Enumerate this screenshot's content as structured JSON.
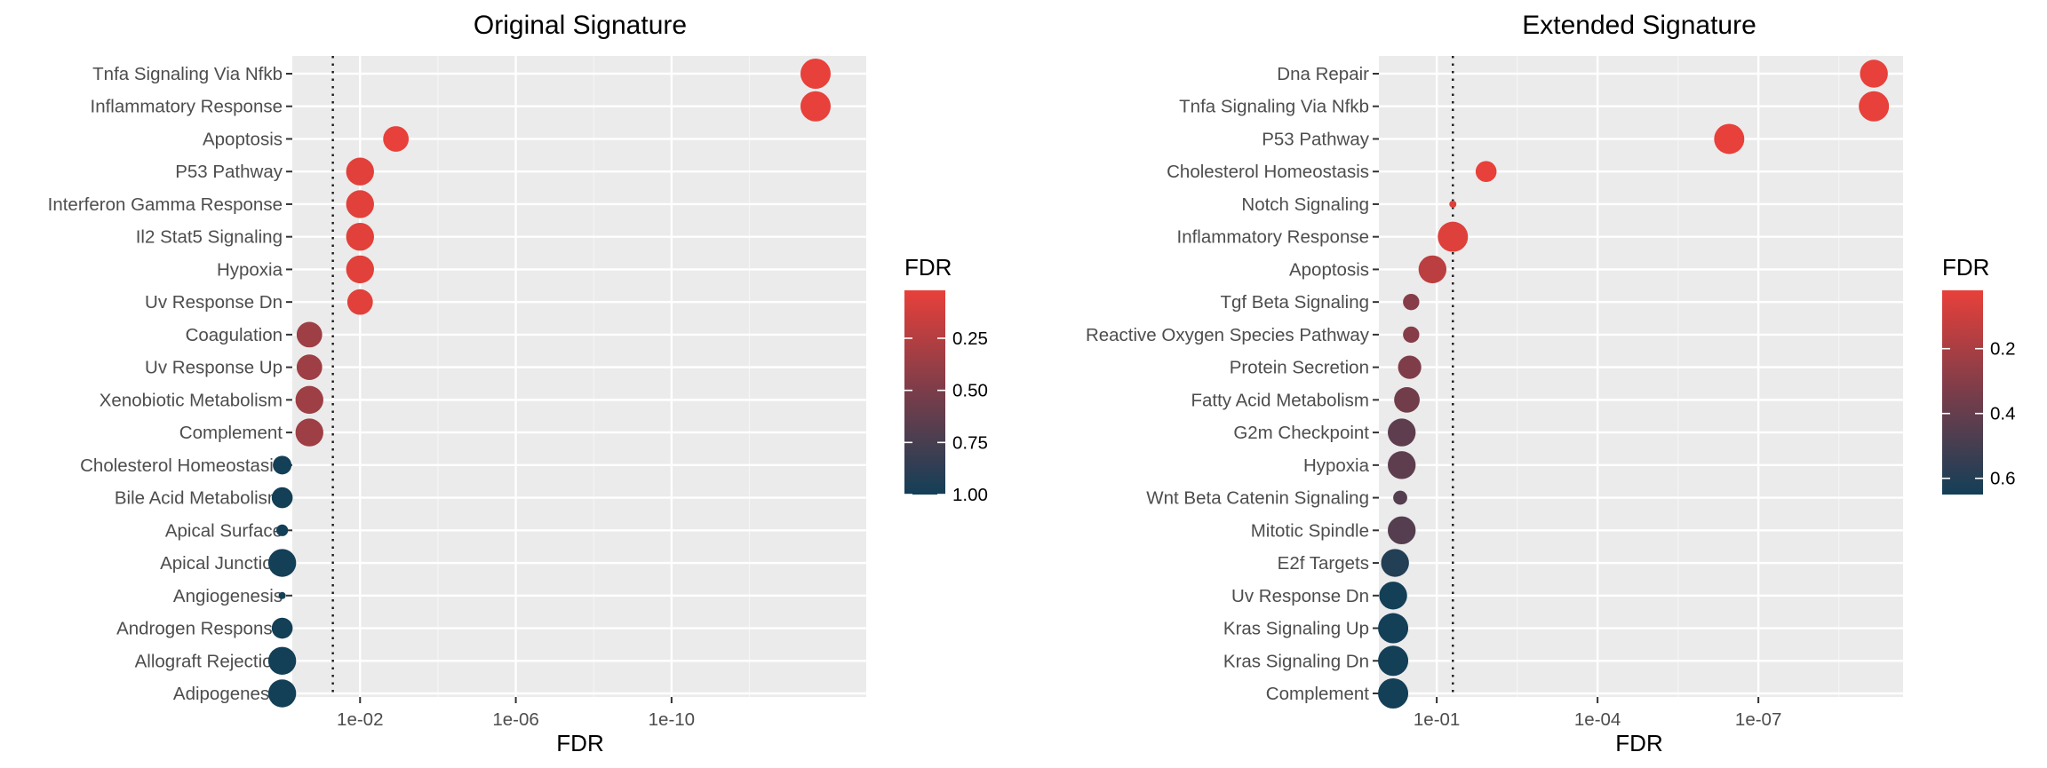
{
  "chart_data": [
    {
      "type": "scatter",
      "title": "Original Signature",
      "xlabel": "FDR",
      "ylabel": "",
      "x_scale": "log10-reversed",
      "xlim": [
        0.55,
        1e-15
      ],
      "x_ticks": [
        {
          "value": 0.01,
          "label": "1e-02"
        },
        {
          "value": 1e-06,
          "label": "1e-06"
        },
        {
          "value": 1e-10,
          "label": "1e-10"
        }
      ],
      "threshold_line": 0.05,
      "grid": true,
      "legend": {
        "title": "FDR",
        "placement": "right",
        "color_low": "#e8403a",
        "color_high": "#133f57",
        "range": [
          0.02,
          1.0
        ],
        "ticks": [
          0.25,
          0.5,
          0.75,
          1.0
        ],
        "tick_labels": [
          "0.25",
          "0.50",
          "0.75",
          "1.00"
        ]
      },
      "size_scale": [
        1,
        19
      ],
      "categories": [
        "Tnfa Signaling Via Nfkb",
        "Inflammatory Response",
        "Apoptosis",
        "P53 Pathway",
        "Interferon Gamma Response",
        "Il2 Stat5 Signaling",
        "Hypoxia",
        "Uv Response Dn",
        "Coagulation",
        "Uv Response Up",
        "Xenobiotic Metabolism",
        "Complement",
        "Cholesterol Homeostasis",
        "Bile Acid Metabolism",
        "Apical Surface",
        "Apical Junction",
        "Angiogenesis",
        "Androgen Response",
        "Allograft Rejection",
        "Adipogenesis"
      ],
      "x": [
        2e-14,
        2e-14,
        0.0012,
        0.01,
        0.01,
        0.01,
        0.01,
        0.01,
        0.2,
        0.2,
        0.2,
        0.2,
        1.0,
        1.0,
        1.0,
        1.0,
        1.0,
        1.0,
        1.0,
        1.0
      ],
      "size": [
        11,
        11,
        9,
        10,
        10,
        10,
        10,
        9,
        9,
        9,
        10,
        10,
        6,
        7,
        3,
        10,
        1,
        7,
        10,
        10
      ],
      "color_value": [
        0.02,
        0.02,
        0.02,
        0.05,
        0.05,
        0.05,
        0.05,
        0.05,
        0.35,
        0.35,
        0.35,
        0.35,
        1.0,
        1.0,
        1.0,
        1.0,
        1.0,
        1.0,
        1.0,
        1.0
      ]
    },
    {
      "type": "scatter",
      "title": "Extended Signature",
      "xlabel": "FDR",
      "ylabel": "",
      "x_scale": "log10-reversed",
      "xlim": [
        1.2,
        2e-10
      ],
      "x_ticks": [
        {
          "value": 0.1,
          "label": "1e-01"
        },
        {
          "value": 0.0001,
          "label": "1e-04"
        },
        {
          "value": 1e-07,
          "label": "1e-07"
        }
      ],
      "threshold_line": 0.05,
      "grid": true,
      "legend": {
        "title": "FDR",
        "placement": "right",
        "color_low": "#e8403a",
        "color_high": "#133f57",
        "range": [
          0.02,
          0.65
        ],
        "ticks": [
          0.2,
          0.4,
          0.6
        ],
        "tick_labels": [
          "0.2",
          "0.4",
          "0.6"
        ]
      },
      "size_scale": [
        1,
        19
      ],
      "categories": [
        "Dna Repair",
        "Tnfa Signaling Via Nfkb",
        "P53 Pathway",
        "Cholesterol Homeostasis",
        "Notch Signaling",
        "Inflammatory Response",
        "Apoptosis",
        "Tgf Beta Signaling",
        "Reactive Oxygen Species Pathway",
        "Protein Secretion",
        "Fatty Acid Metabolism",
        "G2m Checkpoint",
        "Hypoxia",
        "Wnt Beta Catenin Signaling",
        "Mitotic Spindle",
        "E2f Targets",
        "Uv Response Dn",
        "Kras Signaling Up",
        "Kras Signaling Dn",
        "Complement"
      ],
      "x": [
        7e-10,
        7e-10,
        3.5e-07,
        0.012,
        0.05,
        0.05,
        0.12,
        0.3,
        0.3,
        0.32,
        0.36,
        0.45,
        0.45,
        0.48,
        0.45,
        0.6,
        0.65,
        0.65,
        0.65,
        0.65
      ],
      "size": [
        10,
        11,
        11,
        7,
        1,
        11,
        10,
        5,
        5,
        8,
        9,
        10,
        10,
        4,
        10,
        10,
        10,
        11,
        11,
        11
      ],
      "color_value": [
        0.02,
        0.02,
        0.02,
        0.02,
        0.05,
        0.05,
        0.15,
        0.3,
        0.3,
        0.32,
        0.36,
        0.42,
        0.42,
        0.45,
        0.45,
        0.6,
        0.65,
        0.65,
        0.65,
        0.65
      ]
    }
  ]
}
